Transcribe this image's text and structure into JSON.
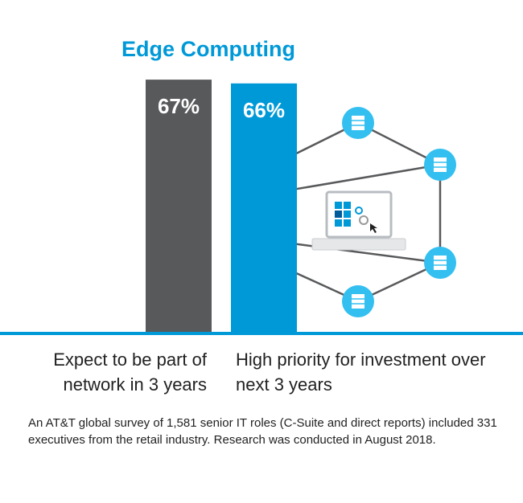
{
  "chart_data": {
    "type": "bar",
    "title": "Edge Computing",
    "categories": [
      "Expect to be part of network in 3 years",
      "High priority for investment over next 3 years"
    ],
    "values": [
      67,
      66
    ],
    "value_labels": [
      "67%",
      "66%"
    ],
    "colors": [
      "#58595b",
      "#0099d8"
    ],
    "note": "An AT&T global survey of 1,581 senior IT roles (C-Suite and direct reports) included 331 executives from the retail industry. Research was conducted in August 2018."
  }
}
